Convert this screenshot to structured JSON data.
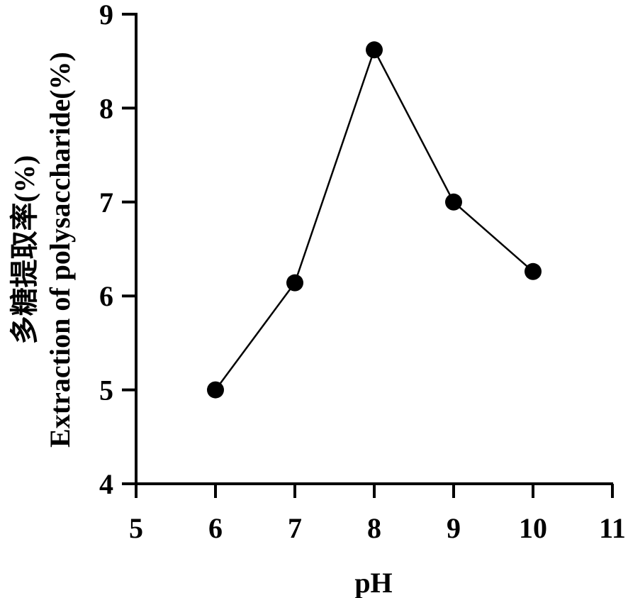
{
  "chart_data": {
    "type": "line",
    "xlabel": "pH",
    "ylabel_lines": [
      "多糖提取率(%)",
      "Extraction of polysaccharide(%)"
    ],
    "xlim": [
      5,
      11
    ],
    "ylim": [
      4,
      9
    ],
    "xticks": [
      5,
      6,
      7,
      8,
      9,
      10,
      11
    ],
    "yticks": [
      4,
      5,
      6,
      7,
      8,
      9
    ],
    "grid": false,
    "series": [
      {
        "x": [
          6,
          7,
          8,
          9,
          10
        ],
        "y": [
          5.0,
          6.14,
          8.62,
          7.0,
          6.26
        ],
        "marker": "circle",
        "color": "#000000"
      }
    ]
  }
}
